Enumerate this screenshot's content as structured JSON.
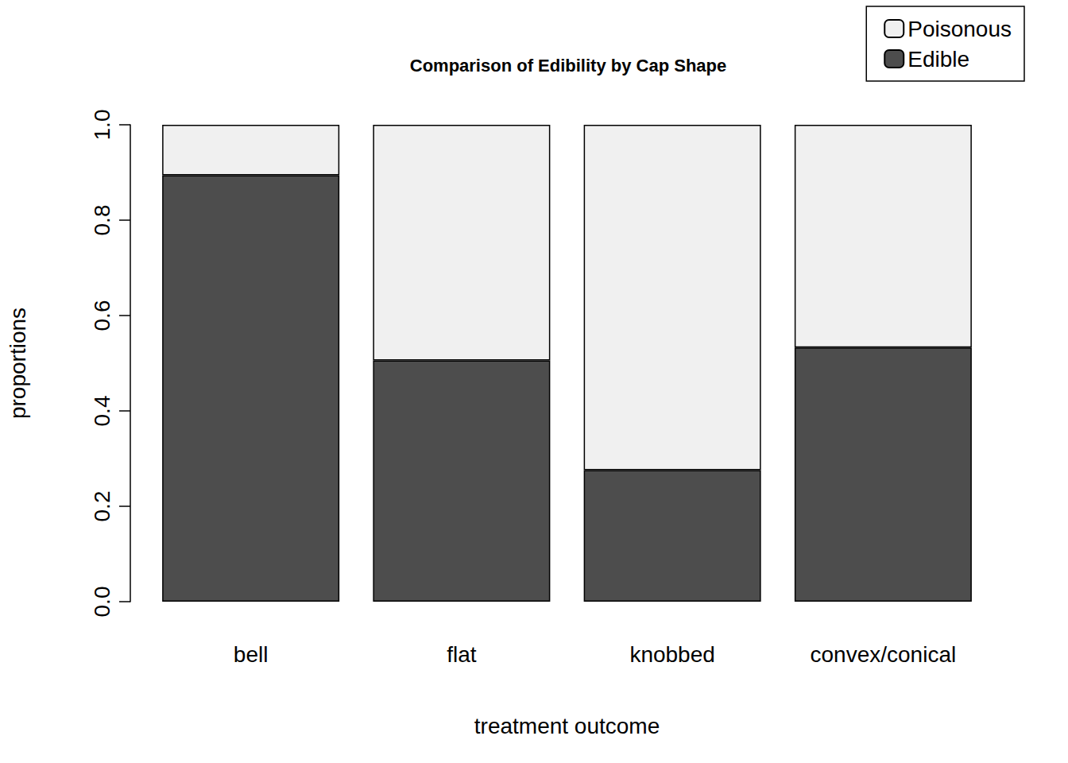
{
  "chart_data": {
    "type": "bar",
    "title": "Comparison of Edibility by Cap Shape",
    "x_label": "treatment outcome",
    "y_label": "proportions",
    "categories": [
      "bell",
      "flat",
      "knobbed",
      "convex/conical"
    ],
    "series": [
      {
        "name": "Edible",
        "color": "#4d4d4d",
        "values": [
          0.894,
          0.506,
          0.276,
          0.533
        ]
      },
      {
        "name": "Poisonous",
        "color": "#f0f0f0",
        "values": [
          0.106,
          0.494,
          0.724,
          0.467
        ]
      }
    ],
    "stacked": true,
    "ylim": [
      0,
      1
    ],
    "yticks": [
      {
        "value": 0,
        "label": "0.0"
      },
      0.2,
      0.4,
      0.6,
      0.8,
      {
        "value": 1,
        "label": "1.0"
      }
    ],
    "grid": false,
    "legend": "top-right"
  }
}
